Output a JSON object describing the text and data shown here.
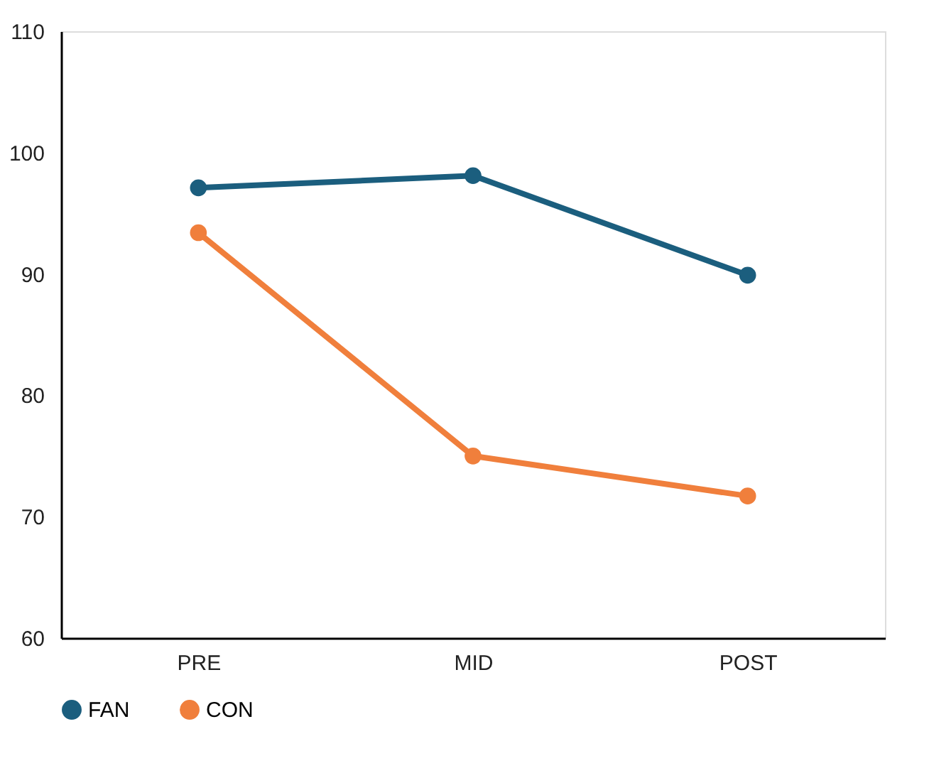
{
  "chart_data": {
    "type": "line",
    "categories": [
      "PRE",
      "MID",
      "POST"
    ],
    "series": [
      {
        "name": "FAN",
        "color": "#1b5e7e",
        "values": [
          97.1,
          98.1,
          89.9
        ]
      },
      {
        "name": "CON",
        "color": "#f07f3c",
        "values": [
          93.4,
          75.0,
          71.7
        ]
      }
    ],
    "ylim": [
      60,
      110
    ],
    "yticks": [
      60,
      70,
      80,
      90,
      100,
      110
    ],
    "grid": false,
    "legend": "bottom",
    "marker": "circle",
    "line_style": "solid"
  }
}
